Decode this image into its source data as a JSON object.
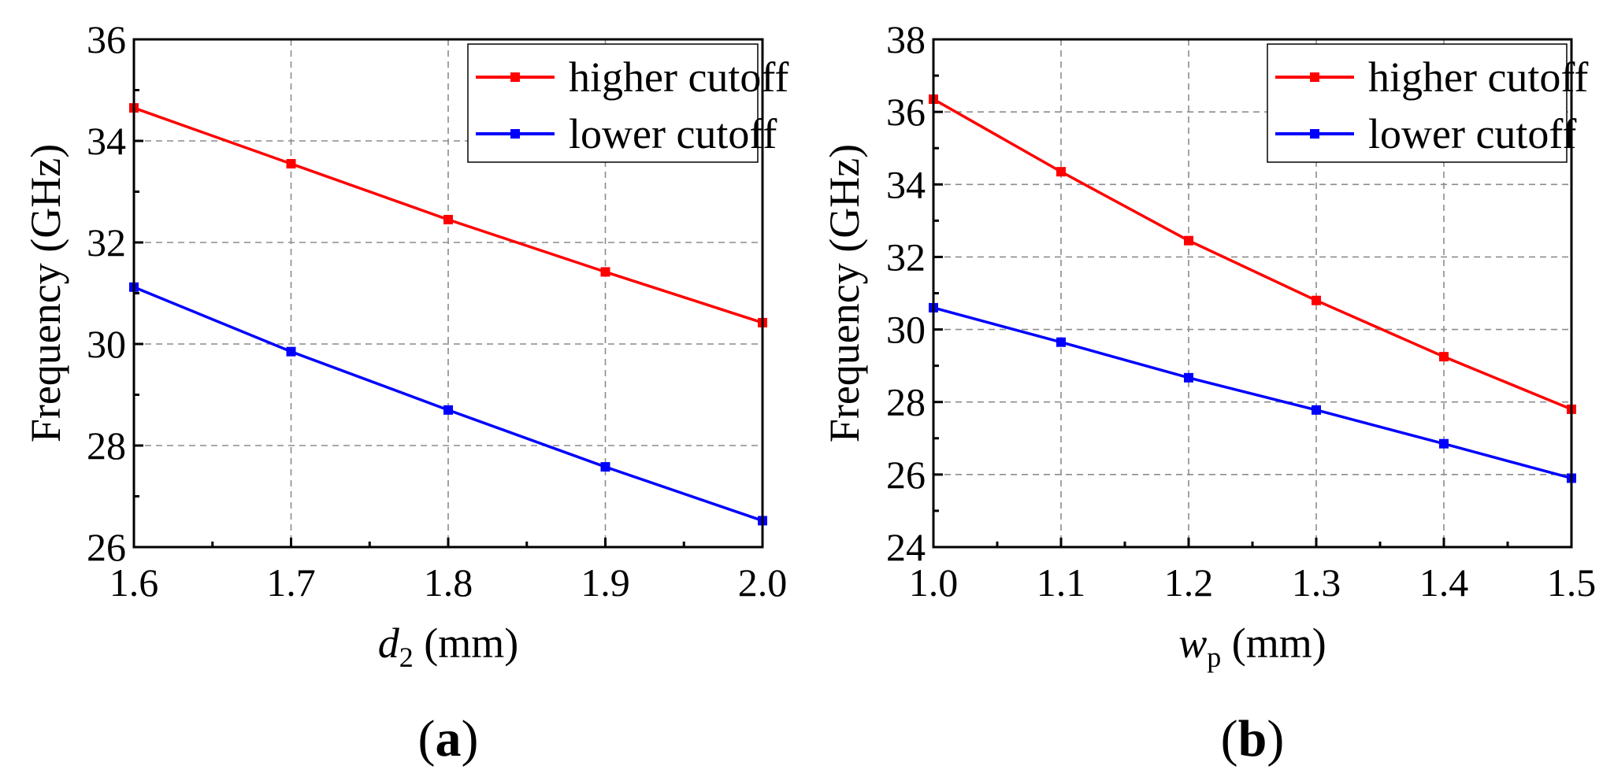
{
  "chart_data": [
    {
      "type": "line",
      "panel_label": "(a)",
      "xlabel_var": "d",
      "xlabel_sub": "2",
      "xlabel_unit": " (mm)",
      "ylabel": "Frequency (GHz)",
      "xlim": [
        1.6,
        2.0
      ],
      "ylim": [
        26,
        36
      ],
      "xticks": [
        1.6,
        1.7,
        1.8,
        1.9,
        2.0
      ],
      "xtick_labels": [
        "1.6",
        "1.7",
        "1.8",
        "1.9",
        "2.0"
      ],
      "yticks": [
        26,
        28,
        30,
        32,
        34,
        36
      ],
      "ytick_labels": [
        "26",
        "28",
        "30",
        "32",
        "34",
        "36"
      ],
      "grid": true,
      "legend_position": "top-right",
      "x": [
        1.6,
        1.7,
        1.8,
        1.9,
        2.0
      ],
      "series": [
        {
          "name": "higher cutoff",
          "color": "#ff0000",
          "values": [
            34.65,
            33.55,
            32.45,
            31.42,
            30.42
          ]
        },
        {
          "name": "lower cutoff",
          "color": "#0000ff",
          "values": [
            31.12,
            29.85,
            28.7,
            27.58,
            26.52
          ]
        }
      ]
    },
    {
      "type": "line",
      "panel_label": "(b)",
      "xlabel_var": "w",
      "xlabel_sub": "p",
      "xlabel_unit": " (mm)",
      "ylabel": "Frequency (GHz)",
      "xlim": [
        1.0,
        1.5
      ],
      "ylim": [
        24,
        38
      ],
      "xticks": [
        1.0,
        1.1,
        1.2,
        1.3,
        1.4,
        1.5
      ],
      "xtick_labels": [
        "1.0",
        "1.1",
        "1.2",
        "1.3",
        "1.4",
        "1.5"
      ],
      "yticks": [
        24,
        26,
        28,
        30,
        32,
        34,
        36,
        38
      ],
      "ytick_labels": [
        "24",
        "26",
        "28",
        "30",
        "32",
        "34",
        "36",
        "38"
      ],
      "grid": true,
      "legend_position": "top-right",
      "x": [
        1.0,
        1.1,
        1.2,
        1.3,
        1.4,
        1.5
      ],
      "series": [
        {
          "name": "higher cutoff",
          "color": "#ff0000",
          "values": [
            36.35,
            34.35,
            32.45,
            30.8,
            29.25,
            27.8
          ]
        },
        {
          "name": "lower cutoff",
          "color": "#0000ff",
          "values": [
            30.6,
            29.65,
            28.67,
            27.78,
            26.85,
            25.9
          ]
        }
      ]
    }
  ]
}
